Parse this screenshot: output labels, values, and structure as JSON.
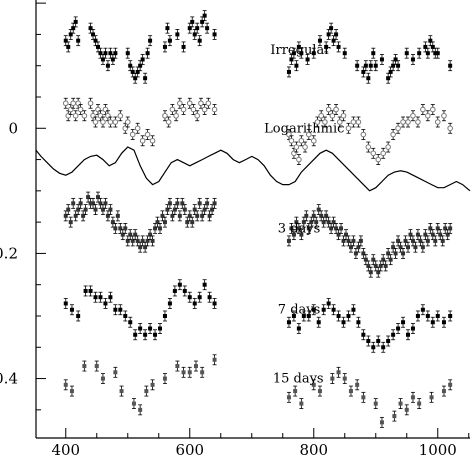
{
  "chart_data": {
    "type": "scatter",
    "title": "",
    "xlabel": "",
    "ylabel": "",
    "xlim": [
      352,
      1052
    ],
    "ylim": [
      0.495,
      -0.205
    ],
    "x_ticks": [
      {
        "value": 400,
        "label": "400"
      },
      {
        "value": 600,
        "label": "600"
      },
      {
        "value": 800,
        "label": "800"
      },
      {
        "value": 1000,
        "label": "1000"
      }
    ],
    "y_ticks": [
      {
        "value": 0.0,
        "label": "0"
      },
      {
        "value": 0.2,
        "label": "0.2"
      },
      {
        "value": 0.4,
        "label": "0.4"
      }
    ],
    "series": [
      {
        "name": "Irregular",
        "color": "#000000",
        "marker": "filled-square",
        "x": [
          400,
          404,
          408,
          412,
          416,
          420,
          440,
          444,
          448,
          452,
          456,
          460,
          464,
          468,
          472,
          476,
          480,
          500,
          504,
          508,
          512,
          516,
          520,
          524,
          528,
          532,
          536,
          560,
          564,
          568,
          580,
          590,
          600,
          604,
          608,
          612,
          616,
          620,
          624,
          628,
          640,
          760,
          764,
          768,
          772,
          776,
          780,
          790,
          800,
          810,
          820,
          824,
          828,
          832,
          836,
          840,
          850,
          870,
          880,
          884,
          888,
          892,
          896,
          900,
          910,
          920,
          924,
          928,
          932,
          936,
          950,
          960,
          970,
          980,
          984,
          988,
          992,
          996,
          1000,
          1020
        ],
        "y": [
          -0.14,
          -0.13,
          -0.15,
          -0.16,
          -0.17,
          -0.14,
          -0.16,
          -0.15,
          -0.14,
          -0.13,
          -0.12,
          -0.11,
          -0.12,
          -0.1,
          -0.12,
          -0.11,
          -0.12,
          -0.12,
          -0.1,
          -0.09,
          -0.08,
          -0.09,
          -0.1,
          -0.11,
          -0.08,
          -0.12,
          -0.14,
          -0.13,
          -0.16,
          -0.14,
          -0.15,
          -0.13,
          -0.16,
          -0.17,
          -0.15,
          -0.16,
          -0.14,
          -0.17,
          -0.18,
          -0.16,
          -0.15,
          -0.09,
          -0.11,
          -0.12,
          -0.1,
          -0.13,
          -0.12,
          -0.11,
          -0.12,
          -0.14,
          -0.13,
          -0.15,
          -0.16,
          -0.14,
          -0.15,
          -0.13,
          -0.12,
          -0.1,
          -0.09,
          -0.1,
          -0.08,
          -0.1,
          -0.12,
          -0.1,
          -0.11,
          -0.08,
          -0.09,
          -0.1,
          -0.11,
          -0.1,
          -0.12,
          -0.11,
          -0.12,
          -0.13,
          -0.12,
          -0.14,
          -0.13,
          -0.12,
          -0.12,
          -0.1
        ]
      },
      {
        "name": "Logarithmic",
        "color": "#777777",
        "marker": "open-circle",
        "x": [
          400,
          404,
          408,
          412,
          416,
          420,
          424,
          430,
          440,
          444,
          448,
          452,
          456,
          460,
          464,
          468,
          472,
          480,
          488,
          496,
          500,
          508,
          516,
          524,
          532,
          540,
          560,
          566,
          572,
          578,
          584,
          590,
          600,
          606,
          612,
          618,
          624,
          630,
          640,
          760,
          764,
          768,
          772,
          776,
          780,
          786,
          792,
          800,
          806,
          812,
          818,
          824,
          830,
          836,
          842,
          848,
          856,
          864,
          872,
          880,
          888,
          896,
          904,
          912,
          920,
          928,
          936,
          944,
          952,
          960,
          968,
          976,
          984,
          992,
          1000,
          1010,
          1020
        ],
        "y": [
          -0.04,
          -0.02,
          -0.03,
          -0.04,
          -0.02,
          -0.04,
          -0.03,
          -0.02,
          -0.04,
          -0.02,
          -0.01,
          -0.03,
          -0.02,
          -0.01,
          -0.03,
          -0.02,
          -0.01,
          -0.01,
          -0.02,
          0.0,
          -0.01,
          0.01,
          0.0,
          0.02,
          0.01,
          0.02,
          -0.02,
          -0.01,
          -0.03,
          -0.02,
          -0.04,
          -0.03,
          -0.04,
          -0.03,
          -0.02,
          -0.04,
          -0.03,
          -0.04,
          -0.03,
          0.01,
          0.02,
          0.04,
          0.03,
          0.05,
          0.02,
          0.03,
          0.01,
          0.02,
          -0.01,
          -0.02,
          -0.01,
          -0.03,
          -0.02,
          -0.03,
          -0.01,
          -0.02,
          0.0,
          -0.01,
          -0.01,
          0.01,
          0.03,
          0.04,
          0.05,
          0.04,
          0.03,
          0.01,
          0.0,
          -0.01,
          -0.01,
          -0.02,
          -0.01,
          -0.03,
          -0.02,
          -0.03,
          -0.01,
          -0.02,
          0.0
        ]
      },
      {
        "name": "3 days",
        "color": "#333333",
        "marker": "filled-square",
        "x": [
          400,
          404,
          408,
          412,
          416,
          420,
          424,
          428,
          432,
          436,
          440,
          444,
          448,
          452,
          456,
          460,
          464,
          468,
          472,
          476,
          480,
          484,
          488,
          492,
          496,
          500,
          504,
          508,
          512,
          516,
          520,
          524,
          528,
          532,
          536,
          540,
          544,
          548,
          552,
          556,
          560,
          564,
          568,
          572,
          576,
          580,
          584,
          588,
          592,
          596,
          600,
          604,
          608,
          612,
          616,
          620,
          624,
          628,
          632,
          636,
          640,
          760,
          764,
          768,
          772,
          776,
          780,
          784,
          788,
          792,
          796,
          800,
          804,
          808,
          812,
          816,
          820,
          824,
          828,
          832,
          836,
          840,
          844,
          848,
          852,
          856,
          860,
          864,
          868,
          872,
          876,
          880,
          884,
          888,
          892,
          896,
          900,
          904,
          908,
          912,
          916,
          920,
          924,
          928,
          932,
          936,
          940,
          944,
          948,
          952,
          956,
          960,
          964,
          968,
          972,
          976,
          980,
          984,
          988,
          992,
          996,
          1000,
          1004,
          1008,
          1012,
          1016,
          1020
        ],
        "y": [
          0.14,
          0.13,
          0.15,
          0.12,
          0.14,
          0.13,
          0.12,
          0.14,
          0.13,
          0.11,
          0.12,
          0.12,
          0.13,
          0.11,
          0.12,
          0.13,
          0.12,
          0.14,
          0.13,
          0.15,
          0.16,
          0.14,
          0.16,
          0.17,
          0.16,
          0.18,
          0.17,
          0.18,
          0.17,
          0.18,
          0.19,
          0.18,
          0.19,
          0.18,
          0.17,
          0.18,
          0.16,
          0.15,
          0.16,
          0.14,
          0.15,
          0.13,
          0.12,
          0.14,
          0.13,
          0.12,
          0.14,
          0.12,
          0.13,
          0.15,
          0.14,
          0.15,
          0.13,
          0.14,
          0.12,
          0.14,
          0.13,
          0.12,
          0.14,
          0.13,
          0.12,
          0.18,
          0.16,
          0.17,
          0.15,
          0.16,
          0.17,
          0.15,
          0.14,
          0.16,
          0.15,
          0.14,
          0.15,
          0.13,
          0.14,
          0.15,
          0.14,
          0.15,
          0.16,
          0.15,
          0.16,
          0.17,
          0.16,
          0.18,
          0.17,
          0.18,
          0.19,
          0.18,
          0.2,
          0.19,
          0.18,
          0.2,
          0.21,
          0.22,
          0.23,
          0.21,
          0.22,
          0.23,
          0.22,
          0.21,
          0.22,
          0.2,
          0.21,
          0.19,
          0.2,
          0.18,
          0.19,
          0.2,
          0.18,
          0.19,
          0.17,
          0.18,
          0.19,
          0.17,
          0.18,
          0.19,
          0.17,
          0.18,
          0.16,
          0.17,
          0.18,
          0.16,
          0.17,
          0.18,
          0.16,
          0.17,
          0.16
        ]
      },
      {
        "name": "7 days",
        "color": "#000000",
        "marker": "filled-square",
        "x": [
          400,
          410,
          420,
          432,
          440,
          448,
          456,
          464,
          472,
          480,
          488,
          496,
          504,
          512,
          520,
          528,
          536,
          544,
          552,
          560,
          568,
          576,
          584,
          592,
          600,
          608,
          616,
          624,
          632,
          640,
          760,
          768,
          776,
          784,
          792,
          800,
          808,
          816,
          824,
          832,
          840,
          848,
          856,
          864,
          872,
          880,
          888,
          896,
          904,
          912,
          920,
          928,
          936,
          944,
          952,
          960,
          968,
          976,
          984,
          992,
          1000,
          1010,
          1020
        ],
        "y": [
          0.28,
          0.29,
          0.3,
          0.26,
          0.26,
          0.27,
          0.27,
          0.28,
          0.27,
          0.29,
          0.29,
          0.3,
          0.31,
          0.33,
          0.32,
          0.33,
          0.32,
          0.33,
          0.32,
          0.3,
          0.28,
          0.26,
          0.25,
          0.26,
          0.27,
          0.28,
          0.27,
          0.25,
          0.27,
          0.28,
          0.31,
          0.3,
          0.32,
          0.3,
          0.3,
          0.29,
          0.31,
          0.29,
          0.28,
          0.29,
          0.3,
          0.31,
          0.3,
          0.29,
          0.31,
          0.33,
          0.34,
          0.35,
          0.34,
          0.35,
          0.34,
          0.33,
          0.32,
          0.31,
          0.33,
          0.32,
          0.3,
          0.29,
          0.3,
          0.31,
          0.3,
          0.31,
          0.3
        ]
      },
      {
        "name": "15 days",
        "color": "#555555",
        "marker": "filled-square",
        "x": [
          400,
          410,
          430,
          450,
          460,
          480,
          490,
          510,
          520,
          530,
          540,
          560,
          580,
          590,
          600,
          610,
          620,
          640,
          760,
          770,
          780,
          800,
          810,
          830,
          840,
          850,
          860,
          870,
          880,
          900,
          910,
          930,
          940,
          950,
          960,
          970,
          990,
          1010,
          1020
        ],
        "y": [
          0.41,
          0.42,
          0.38,
          0.38,
          0.4,
          0.39,
          0.42,
          0.44,
          0.45,
          0.42,
          0.41,
          0.4,
          0.38,
          0.39,
          0.39,
          0.38,
          0.39,
          0.37,
          0.43,
          0.42,
          0.44,
          0.41,
          0.42,
          0.4,
          0.39,
          0.4,
          0.42,
          0.41,
          0.43,
          0.44,
          0.47,
          0.46,
          0.44,
          0.45,
          0.43,
          0.44,
          0.43,
          0.42,
          0.41
        ]
      },
      {
        "name": "",
        "type": "line",
        "color": "#000000",
        "x": [
          352,
          360,
          370,
          380,
          390,
          400,
          410,
          420,
          430,
          440,
          450,
          460,
          470,
          480,
          490,
          500,
          510,
          520,
          530,
          540,
          550,
          560,
          570,
          580,
          590,
          600,
          610,
          620,
          630,
          640,
          650,
          660,
          670,
          680,
          690,
          700,
          710,
          720,
          730,
          740,
          750,
          760,
          770,
          780,
          790,
          800,
          810,
          820,
          830,
          840,
          850,
          860,
          870,
          880,
          890,
          900,
          910,
          920,
          930,
          940,
          950,
          960,
          970,
          980,
          990,
          1000,
          1010,
          1020,
          1030,
          1040,
          1052
        ],
        "y": [
          0.035,
          0.045,
          0.055,
          0.065,
          0.072,
          0.075,
          0.07,
          0.06,
          0.05,
          0.045,
          0.043,
          0.05,
          0.06,
          0.055,
          0.04,
          0.03,
          0.035,
          0.06,
          0.08,
          0.09,
          0.085,
          0.07,
          0.055,
          0.05,
          0.055,
          0.06,
          0.055,
          0.05,
          0.045,
          0.04,
          0.035,
          0.04,
          0.05,
          0.055,
          0.05,
          0.045,
          0.05,
          0.06,
          0.075,
          0.085,
          0.09,
          0.09,
          0.085,
          0.07,
          0.06,
          0.05,
          0.04,
          0.035,
          0.04,
          0.05,
          0.06,
          0.07,
          0.08,
          0.09,
          0.1,
          0.095,
          0.085,
          0.075,
          0.07,
          0.068,
          0.07,
          0.075,
          0.08,
          0.085,
          0.09,
          0.095,
          0.095,
          0.09,
          0.085,
          0.09,
          0.1
        ]
      }
    ],
    "annotations": [
      {
        "text": "Irregular",
        "x": 730,
        "y": -0.125
      },
      {
        "text": "Logarithmic",
        "x": 720,
        "y": 0.0
      },
      {
        "text": "3 days",
        "x": 742,
        "y": 0.16
      },
      {
        "text": "7 days",
        "x": 742,
        "y": 0.29
      },
      {
        "text": "15 days",
        "x": 734,
        "y": 0.4
      }
    ],
    "grid": false,
    "legend": "none"
  }
}
